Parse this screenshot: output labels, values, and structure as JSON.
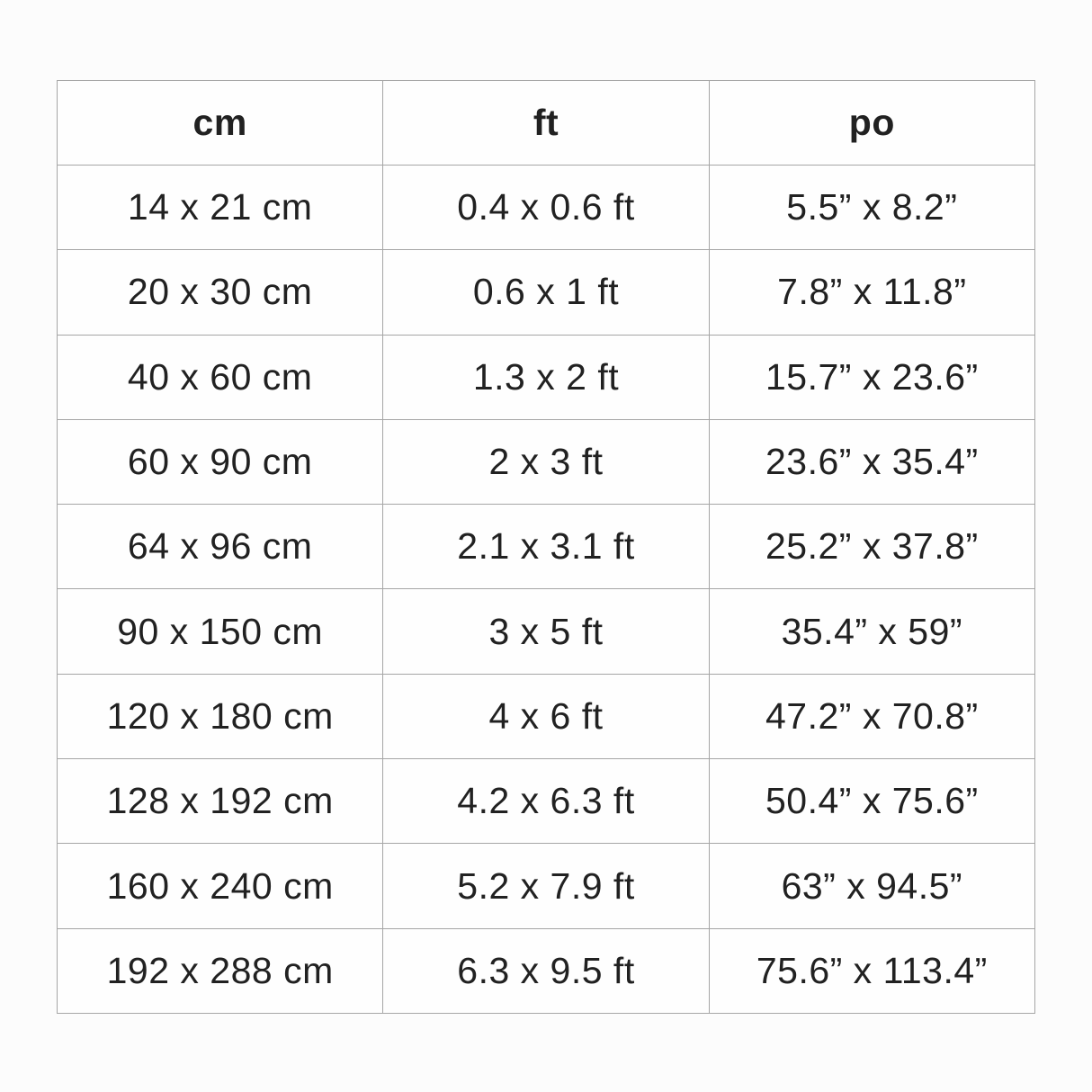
{
  "colors": {
    "page_bg": "#fcfcfc",
    "cell_bg": "#fefefe",
    "border": "#a6a6a6",
    "text": "#212121"
  },
  "table": {
    "headers": [
      "cm",
      "ft",
      "po"
    ],
    "rows": [
      [
        "14 x 21 cm",
        "0.4 x 0.6 ft",
        "5.5” x 8.2”"
      ],
      [
        "20 x 30 cm",
        "0.6 x 1 ft",
        "7.8” x 11.8”"
      ],
      [
        "40 x 60 cm",
        "1.3 x 2 ft",
        "15.7” x 23.6”"
      ],
      [
        "60 x 90 cm",
        "2 x 3 ft",
        "23.6” x 35.4”"
      ],
      [
        "64 x 96 cm",
        "2.1 x 3.1 ft",
        "25.2” x 37.8”"
      ],
      [
        "90 x 150 cm",
        "3 x 5 ft",
        "35.4” x 59”"
      ],
      [
        "120 x 180 cm",
        "4 x 6 ft",
        "47.2” x 70.8”"
      ],
      [
        "128 x 192 cm",
        "4.2 x 6.3 ft",
        "50.4” x 75.6”"
      ],
      [
        "160 x 240 cm",
        "5.2 x 7.9 ft",
        "63” x 94.5”"
      ],
      [
        "192 x 288 cm",
        "6.3 x 9.5 ft",
        "75.6” x 113.4”"
      ]
    ]
  },
  "chart_data": {
    "type": "table",
    "title": "",
    "columns": [
      "cm",
      "ft",
      "po"
    ],
    "rows": [
      [
        "14 x 21 cm",
        "0.4 x 0.6 ft",
        "5.5” x 8.2”"
      ],
      [
        "20 x 30 cm",
        "0.6 x 1 ft",
        "7.8” x 11.8”"
      ],
      [
        "40 x 60 cm",
        "1.3 x 2 ft",
        "15.7” x 23.6”"
      ],
      [
        "60 x 90 cm",
        "2 x 3 ft",
        "23.6” x 35.4”"
      ],
      [
        "64 x 96 cm",
        "2.1 x 3.1 ft",
        "25.2” x 37.8”"
      ],
      [
        "90 x 150 cm",
        "3 x 5 ft",
        "35.4” x 59”"
      ],
      [
        "120 x 180 cm",
        "4 x 6 ft",
        "47.2” x 70.8”"
      ],
      [
        "128 x 192 cm",
        "4.2 x 6.3 ft",
        "50.4” x 75.6”"
      ],
      [
        "160 x 240 cm",
        "5.2 x 7.9 ft",
        "63” x 94.5”"
      ],
      [
        "192 x 288 cm",
        "6.3 x 9.5 ft",
        "75.6” x 113.4”"
      ]
    ]
  }
}
